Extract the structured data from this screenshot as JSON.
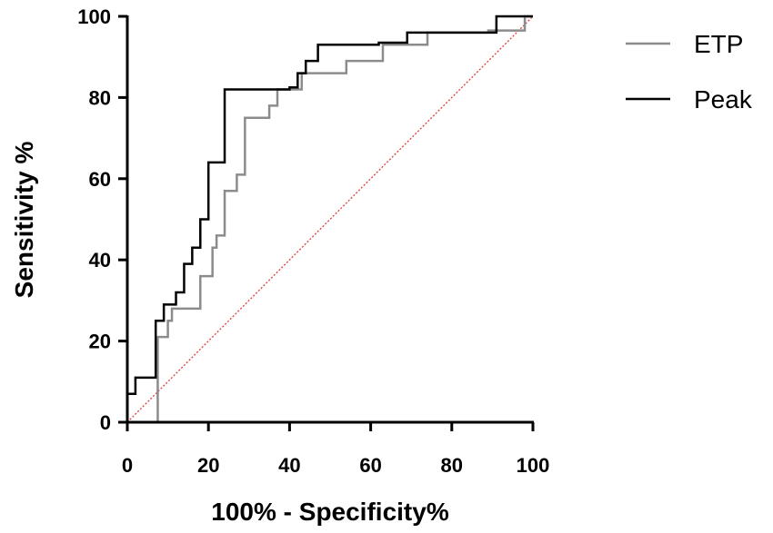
{
  "chart_data": {
    "type": "line",
    "xlabel": "100% - Specificity%",
    "ylabel": "Sensitivity %",
    "xlim": [
      0,
      100
    ],
    "ylim": [
      0,
      100
    ],
    "xticks": [
      "0",
      "20",
      "40",
      "60",
      "80",
      "100"
    ],
    "yticks": [
      "0",
      "20",
      "40",
      "60",
      "80",
      "100"
    ],
    "grid": false,
    "legend_position": "top-right",
    "reference_line": {
      "x": [
        0,
        100
      ],
      "y": [
        0,
        100
      ],
      "style": "dotted",
      "color": "#e03a3a"
    },
    "series": [
      {
        "name": "ETP",
        "color": "#8c8c8c",
        "x": [
          0,
          7.5,
          7.5,
          10,
          10,
          11,
          11,
          18,
          18,
          21,
          21,
          22,
          22,
          24,
          24,
          27,
          27,
          29,
          29,
          35,
          35,
          37,
          37,
          43,
          43,
          54,
          54,
          63,
          63,
          74,
          74,
          89,
          89,
          98,
          98,
          100
        ],
        "y": [
          0,
          0,
          21,
          21,
          25,
          25,
          28,
          28,
          36,
          36,
          43,
          43,
          46,
          46,
          57,
          57,
          61,
          61,
          75,
          75,
          78,
          78,
          82,
          82,
          86,
          86,
          89,
          89,
          93,
          93,
          96,
          96,
          96.5,
          96.5,
          100,
          100
        ]
      },
      {
        "name": "Peak",
        "color": "#000000",
        "x": [
          0,
          0,
          2,
          2,
          7,
          7,
          9,
          9,
          12,
          12,
          14,
          14,
          16,
          16,
          18,
          18,
          20,
          20,
          24,
          24,
          40,
          40,
          42,
          42,
          44,
          44,
          47,
          47,
          62,
          62,
          69,
          69,
          91,
          91,
          100
        ],
        "y": [
          0,
          7,
          7,
          11,
          11,
          25,
          25,
          29,
          29,
          32,
          32,
          39,
          39,
          43,
          43,
          50,
          50,
          64,
          64,
          82,
          82,
          82.5,
          82.5,
          86,
          86,
          89,
          89,
          93,
          93,
          93.5,
          93.5,
          96,
          96,
          100,
          100
        ]
      }
    ]
  }
}
